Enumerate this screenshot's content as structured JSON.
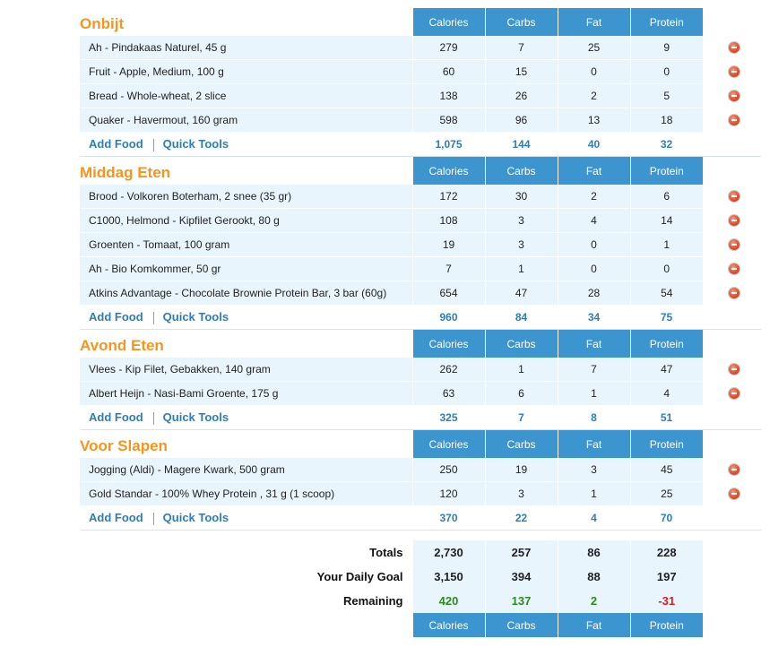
{
  "columns": [
    "Calories",
    "Carbs",
    "Fat",
    "Protein"
  ],
  "links": {
    "add_food": "Add Food",
    "quick_tools": "Quick Tools"
  },
  "meals": [
    {
      "title": "Onbijt",
      "foods": [
        {
          "name": "Ah - Pindakaas Naturel, 45 g",
          "values": [
            "279",
            "7",
            "25",
            "9"
          ]
        },
        {
          "name": "Fruit - Apple, Medium, 100 g",
          "values": [
            "60",
            "15",
            "0",
            "0"
          ]
        },
        {
          "name": "Bread - Whole-wheat, 2 slice",
          "values": [
            "138",
            "26",
            "2",
            "5"
          ]
        },
        {
          "name": "Quaker - Havermout, 160 gram",
          "values": [
            "598",
            "96",
            "13",
            "18"
          ]
        }
      ],
      "totals": [
        "1,075",
        "144",
        "40",
        "32"
      ]
    },
    {
      "title": "Middag Eten",
      "foods": [
        {
          "name": "Brood - Volkoren Boterham, 2 snee (35 gr)",
          "values": [
            "172",
            "30",
            "2",
            "6"
          ]
        },
        {
          "name": "C1000, Helmond - Kipfilet Gerookt, 80 g",
          "values": [
            "108",
            "3",
            "4",
            "14"
          ]
        },
        {
          "name": "Groenten - Tomaat, 100 gram",
          "values": [
            "19",
            "3",
            "0",
            "1"
          ]
        },
        {
          "name": "Ah - Bio Komkommer, 50 gr",
          "values": [
            "7",
            "1",
            "0",
            "0"
          ]
        },
        {
          "name": "Atkins Advantage - Chocolate Brownie Protein Bar, 3 bar (60g)",
          "values": [
            "654",
            "47",
            "28",
            "54"
          ]
        }
      ],
      "totals": [
        "960",
        "84",
        "34",
        "75"
      ]
    },
    {
      "title": "Avond Eten",
      "foods": [
        {
          "name": "Vlees - Kip Filet, Gebakken, 140 gram",
          "values": [
            "262",
            "1",
            "7",
            "47"
          ]
        },
        {
          "name": "Albert Heijn - Nasi-Bami Groente, 175 g",
          "values": [
            "63",
            "6",
            "1",
            "4"
          ]
        }
      ],
      "totals": [
        "325",
        "7",
        "8",
        "51"
      ]
    },
    {
      "title": "Voor Slapen",
      "foods": [
        {
          "name": "Jogging (Aldi) - Magere Kwark, 500 gram",
          "values": [
            "250",
            "19",
            "3",
            "45"
          ]
        },
        {
          "name": "Gold Standar - 100% Whey Protein , 31 g (1 scoop)",
          "values": [
            "120",
            "3",
            "1",
            "25"
          ]
        }
      ],
      "totals": [
        "370",
        "22",
        "4",
        "70"
      ]
    }
  ],
  "summary": {
    "totals": {
      "label": "Totals",
      "values": [
        "2,730",
        "257",
        "86",
        "228"
      ]
    },
    "goal": {
      "label": "Your Daily Goal",
      "values": [
        "3,150",
        "394",
        "88",
        "197"
      ]
    },
    "remaining": {
      "label": "Remaining",
      "values": [
        "420",
        "137",
        "2",
        "-31"
      ],
      "status": [
        "positive",
        "positive",
        "positive",
        "negative"
      ]
    }
  },
  "icons": {
    "delete": "remove-icon"
  },
  "colors": {
    "header_bg": "#3d95d0",
    "meal_title": "#f7941d",
    "link": "#2b7fb6",
    "row_bg": "#e8f5fd",
    "positive": "#2e8b1e",
    "negative": "#dd1b1b"
  }
}
